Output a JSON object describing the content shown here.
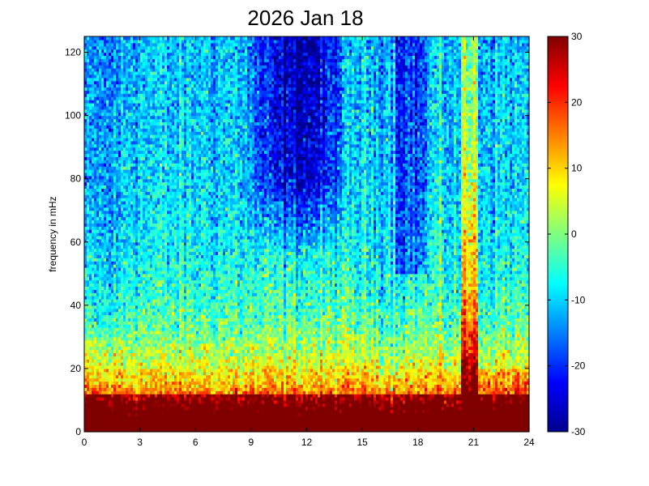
{
  "chart_data": {
    "type": "heatmap",
    "title": "2026 Jan 18",
    "xlabel": "",
    "ylabel": "frequency in mHz",
    "xlim": [
      0,
      24
    ],
    "ylim": [
      0,
      125
    ],
    "x_ticks": [
      "0",
      "3",
      "6",
      "9",
      "12",
      "15",
      "18",
      "21",
      "24"
    ],
    "y_ticks": [
      "0",
      "20",
      "40",
      "60",
      "80",
      "100",
      "120"
    ],
    "colorbar": {
      "range": [
        -30,
        30
      ],
      "ticks": [
        "-30",
        "-20",
        "-10",
        "0",
        "10",
        "20",
        "30"
      ],
      "colormap": "jet"
    },
    "grid": false,
    "description_shape": {
      "low_freq_band_value": 30,
      "high_freq_background_value": -12,
      "quiet_region_hours": [
        8.5,
        14.5
      ],
      "quiet_region_freq_min": 65,
      "quiet_region_value": -26,
      "burst_hours": [
        20.3,
        21.3
      ],
      "burst_value": 28
    }
  }
}
